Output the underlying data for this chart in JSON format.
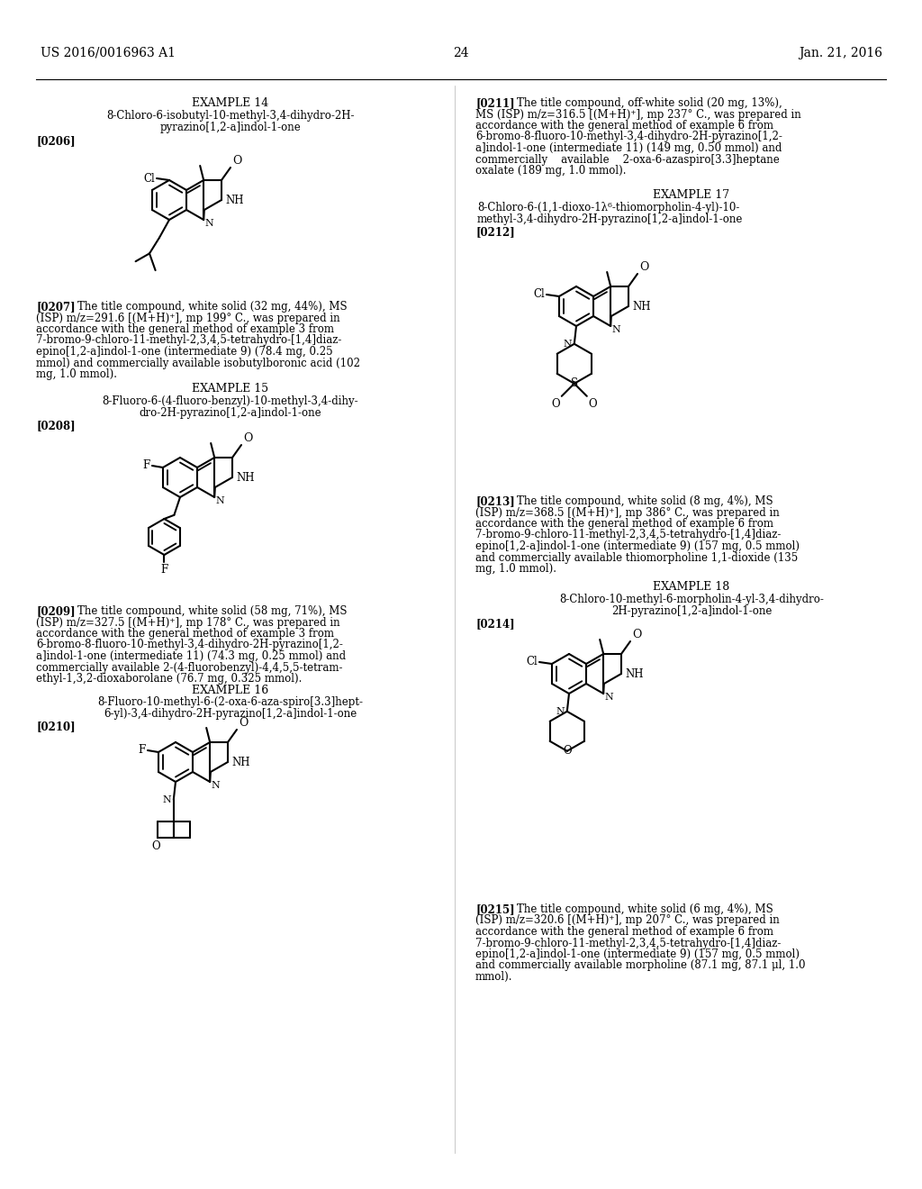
{
  "bg": "#ffffff",
  "header_left": "US 2016/0016963 A1",
  "header_right": "Jan. 21, 2016",
  "page_num": "24",
  "ex14_title1": "EXAMPLE 14",
  "ex14_title2": "8-Chloro-6-isobutyl-10-methyl-3,4-dihydro-2H-",
  "ex14_title3": "pyrazino[1,2-a]indol-1-one",
  "ex14_ref": "[0206]",
  "ex14_text": "[0207]    The title compound, white solid (32 mg, 44%), MS (ISP) m/z=291.6 [(M+H)⁺], mp 199° C., was prepared in accordance with the general method of example 3 from 7-bromo-9-chloro-11-methyl-2,3,4,5-tetrahydro-[1,4]diaz-epino[1,2-a]indol-1-one (intermediate 9) (78.4 mg, 0.25 mmol) and commercially available isobutylboronic acid (102 mg, 1.0 mmol).",
  "ex15_title1": "EXAMPLE 15",
  "ex15_title2": "8-Fluoro-6-(4-fluoro-benzyl)-10-methyl-3,4-dihy-",
  "ex15_title3": "dro-2H-pyrazino[1,2-a]indol-1-one",
  "ex15_ref": "[0208]",
  "ex15_text": "[0209]    The title compound, white solid (58 mg, 71%), MS (ISP) m/z=327.5 [(M+H)⁺], mp 178° C., was prepared in accordance with the general method of example 3 from 6-bromo-8-fluoro-10-methyl-3,4-dihydro-2H-pyrazino[1,2-a]indol-1-one (intermediate 11) (74.3 mg, 0.25 mmol) and commercially available 2-(4-fluorobenzyl)-4,4,5,5-tetram-ethyl-1,3,2-dioxaborolane (76.7 mg, 0.325 mmol).",
  "ex16_title1": "EXAMPLE 16",
  "ex16_title2": "8-Fluoro-10-methyl-6-(2-oxa-6-aza-spiro[3.3]hept-",
  "ex16_title3": "6-yl)-3,4-dihydro-2H-pyrazino[1,2-a]indol-1-one",
  "ex16_ref": "[0210]",
  "ex17_title1": "EXAMPLE 17",
  "ex17_title2": "8-Chloro-6-(1,1-dioxo-1λ⁶-thiomorpholin-4-yl)-10-",
  "ex17_title3": "methyl-3,4-dihydro-2H-pyrazino[1,2-a]indol-1-one",
  "ex17_ref": "[0212]",
  "ex17_text_lines": [
    "[0211]    The title compound, off-white solid (20 mg, 13%),",
    "MS (ISP) m/z=316.5 [(M+H)⁺], mp 237° C., was prepared in",
    "accordance with the general method of example 6 from",
    "6-bromo-8-fluoro-10-methyl-3,4-dihydro-2H-pyrazino[1,2-",
    "a]indol-1-one (intermediate 11) (149 mg, 0.50 mmol) and",
    "commercially    available    2-oxa-6-azaspiro[3.3]heptane",
    "oxalate (189 mg, 1.0 mmol)."
  ],
  "ex18_title1": "EXAMPLE 18",
  "ex18_title2": "8-Chloro-10-methyl-6-morpholin-4-yl-3,4-dihydro-",
  "ex18_title3": "2H-pyrazino[1,2-a]indol-1-one",
  "ex18_ref": "[0214]",
  "ex18_text_lines": [
    "[0213]    The title compound, white solid (8 mg, 4%), MS",
    "(ISP) m/z=368.5 [(M+H)⁺], mp 386° C., was prepared in",
    "accordance with the general method of example 6 from",
    "7-bromo-9-chloro-11-methyl-2,3,4,5-tetrahydro-[1,4]diaz-",
    "epino[1,2-a]indol-1-one (intermediate 9) (157 mg, 0.5 mmol)",
    "and commercially available thiomorpholine 1,1-dioxide (135",
    "mg, 1.0 mmol)."
  ],
  "ex19_text_lines": [
    "[0215]    The title compound, white solid (6 mg, 4%), MS",
    "(ISP) m/z=320.6 [(M+H)⁺], mp 207° C., was prepared in",
    "accordance with the general method of example 6 from",
    "7-bromo-9-chloro-11-methyl-2,3,4,5-tetrahydro-[1,4]diaz-",
    "epino[1,2-a]indol-1-one (intermediate 9) (157 mg, 0.5 mmol)",
    "and commercially available morpholine (87.1 mg, 87.1 μl, 1.0",
    "mmol)."
  ]
}
